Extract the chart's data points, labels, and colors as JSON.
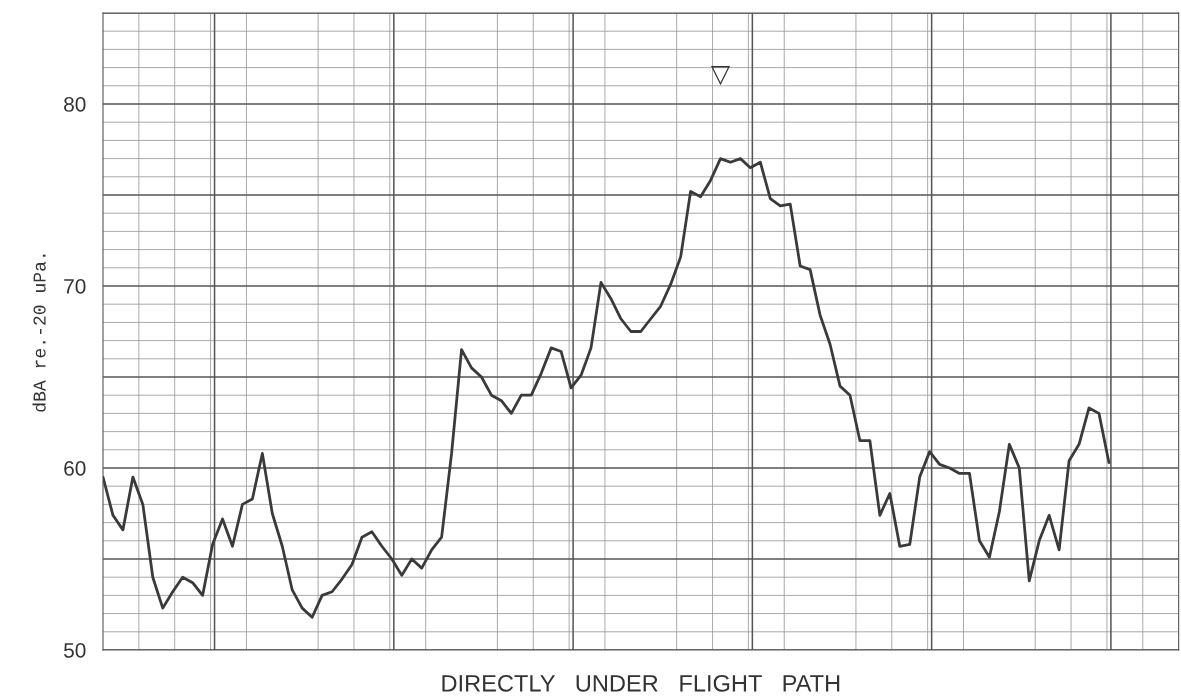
{
  "chart_data": {
    "type": "line",
    "xlabel": "DIRECTLY   UNDER   FLIGHT   PATH",
    "ylabel": "dBA re.-20 uPa.",
    "categories": [
      null,
      null,
      null,
      null,
      null,
      null,
      null,
      null,
      null,
      null,
      null,
      null,
      null,
      null,
      null,
      null,
      null,
      null,
      null,
      null,
      null,
      null,
      null,
      null,
      null,
      null,
      null,
      null,
      null,
      null,
      null,
      null,
      null,
      null,
      null,
      null,
      null,
      null,
      null,
      null,
      null,
      null,
      null,
      null,
      null,
      null,
      null,
      null,
      null,
      null,
      null,
      null,
      null,
      null,
      null,
      null,
      null,
      null,
      null,
      null,
      null,
      null,
      null,
      null,
      null,
      null,
      null,
      null,
      null,
      null,
      null,
      null,
      null,
      null,
      null,
      null,
      null,
      null,
      null,
      null,
      null,
      null,
      null,
      null,
      null,
      null,
      null,
      null,
      null,
      null,
      null,
      null,
      null,
      null,
      null,
      null,
      null,
      null,
      null,
      null,
      null,
      null,
      null,
      null,
      null,
      null,
      null,
      null,
      null
    ],
    "series": [
      {
        "color": "#3a3a3a",
        "values": [
          59.5,
          57.4,
          56.6,
          59.5,
          58,
          54,
          52.3,
          53.2,
          54,
          53.7,
          53,
          55.8,
          57.2,
          55.7,
          58,
          58.3,
          60.8,
          57.5,
          55.7,
          53.3,
          52.3,
          51.8,
          53,
          53.2,
          53.9,
          54.7,
          56.2,
          56.5,
          55.7,
          55,
          54.1,
          55,
          54.5,
          55.5,
          56.2,
          60.8,
          66.5,
          65.5,
          65,
          64,
          63.7,
          63,
          64,
          64,
          65.2,
          66.6,
          66.4,
          64.4,
          65.1,
          66.6,
          70.2,
          69.3,
          68.2,
          67.5,
          67.5,
          68.2,
          68.9,
          70.1,
          71.6,
          75.2,
          74.9,
          75.8,
          77,
          76.8,
          77,
          76.5,
          76.8,
          74.8,
          74.4,
          74.5,
          71.1,
          70.9,
          68.4,
          66.8,
          64.5,
          64,
          61.5,
          61.5,
          57.4,
          58.6,
          55.7,
          55.8,
          59.5,
          60.9,
          60.2,
          60,
          59.7,
          59.7,
          56,
          55.1,
          57.6,
          61.3,
          60,
          53.8,
          56,
          57.4,
          55.5,
          60.4,
          61.3,
          63.3,
          63,
          60.3,
          null,
          null,
          null,
          null,
          null,
          null,
          null
        ]
      }
    ],
    "ylim": [
      50,
      85
    ],
    "yticks": [
      50,
      {
        "value": 55,
        "label": null
      },
      60,
      {
        "value": 65,
        "label": null
      },
      70,
      {
        "value": 75,
        "label": null
      },
      80,
      {
        "value": 85,
        "label": null
      }
    ],
    "annotations": [
      "▽"
    ],
    "grid": true,
    "legend": false,
    "marker": "none",
    "line_style": "solid"
  }
}
